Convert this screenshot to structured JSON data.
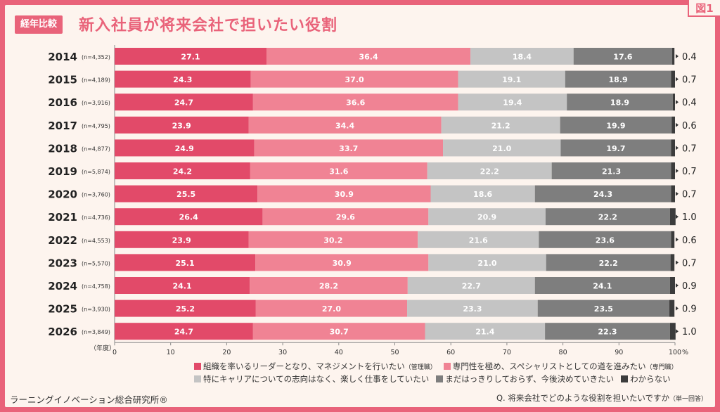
{
  "figure_tag": "図1",
  "badge": "経年比較",
  "title": "新入社員が将来会社で担いたい役割",
  "source": "ラーニングイノベーション総合研究所®",
  "question": {
    "text": "Q. 将来会社でどのような役割を担いたいですか",
    "note": "（単一回答）"
  },
  "colors": {
    "background": "#e9637a",
    "card": "#fdf4ee",
    "management": "#e24a69",
    "specialist": "#f08394",
    "undecided": "#c4c4c4",
    "no_promotion": "#7e7e7e",
    "unknown": "#3c3c3c"
  },
  "chart_data": {
    "type": "bar",
    "orientation": "horizontal",
    "stacked": true,
    "year_unit_label": "（年度）",
    "percent_unit": "%",
    "xlim": [
      0,
      100
    ],
    "x_ticks": [
      0,
      10,
      20,
      30,
      40,
      50,
      60,
      70,
      80,
      90,
      100
    ],
    "categories": [
      "2014",
      "2015",
      "2016",
      "2017",
      "2018",
      "2019",
      "2020",
      "2021",
      "2022",
      "2023",
      "2024",
      "2025",
      "2026"
    ],
    "sample_sizes": [
      "(n=4,352)",
      "(n=4,189)",
      "(n=3,916)",
      "(n=4,795)",
      "(n=4,877)",
      "(n=5,874)",
      "(n=3,760)",
      "(n=4,736)",
      "(n=4,553)",
      "(n=5,570)",
      "(n=4,758)",
      "(n=3,930)",
      "(n=3,849)"
    ],
    "series": [
      {
        "name": "組織を率いるリーダーとなり、マネジメントを行いたい",
        "note": "（管理職）",
        "values": [
          27.1,
          24.3,
          24.7,
          23.9,
          24.9,
          24.2,
          25.5,
          26.4,
          23.9,
          25.1,
          24.1,
          25.2,
          24.7
        ]
      },
      {
        "name": "専門性を極め、スペシャリストとしての道を進みたい",
        "note": "（専門職）",
        "values": [
          36.4,
          37.0,
          36.6,
          34.4,
          33.7,
          31.6,
          30.9,
          29.6,
          30.2,
          30.9,
          28.2,
          27.0,
          30.7
        ]
      },
      {
        "name": "特にキャリアについての志向はなく、楽しく仕事をしていたい",
        "note": "",
        "values": [
          18.4,
          19.1,
          19.4,
          21.2,
          21.0,
          22.2,
          18.6,
          20.9,
          21.6,
          21.0,
          22.7,
          23.3,
          21.4
        ]
      },
      {
        "name": "まだはっきりしておらず、今後決めていきたい",
        "note": "",
        "values": [
          17.6,
          18.9,
          18.9,
          19.9,
          19.7,
          21.3,
          24.3,
          22.2,
          23.6,
          22.2,
          24.1,
          23.5,
          22.3
        ]
      },
      {
        "name": "わからない",
        "note": "",
        "values": [
          0.4,
          0.7,
          0.4,
          0.6,
          0.7,
          0.7,
          0.7,
          1.0,
          0.6,
          0.7,
          0.9,
          0.9,
          1.0
        ]
      }
    ]
  }
}
